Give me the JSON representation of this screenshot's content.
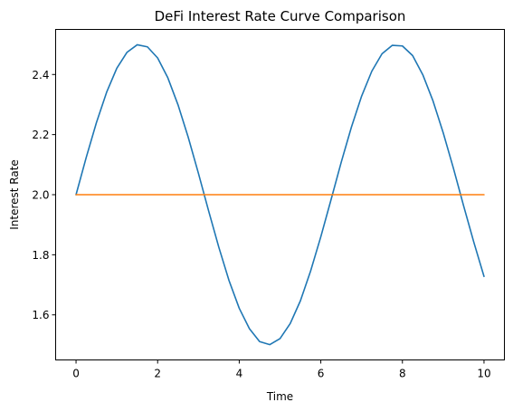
{
  "chart_data": {
    "type": "line",
    "title": "DeFi Interest Rate Curve Comparison",
    "xlabel": "Time",
    "ylabel": "Interest Rate",
    "xlim": [
      -0.5,
      10.5
    ],
    "ylim": [
      1.45,
      2.55
    ],
    "xticks": [
      0,
      2,
      4,
      6,
      8,
      10
    ],
    "xtick_labels": [
      "0",
      "2",
      "4",
      "6",
      "8",
      "10"
    ],
    "yticks": [
      1.6,
      1.8,
      2.0,
      2.2,
      2.4
    ],
    "ytick_labels": [
      "1.6",
      "1.8",
      "2.0",
      "2.2",
      "2.4"
    ],
    "grid": false,
    "legend": "none",
    "series": [
      {
        "color": "#1f77b4",
        "x": [
          0,
          0.25,
          0.5,
          0.75,
          1.0,
          1.25,
          1.5,
          1.75,
          2.0,
          2.25,
          2.5,
          2.75,
          3.0,
          3.25,
          3.5,
          3.75,
          4.0,
          4.25,
          4.5,
          4.75,
          5.0,
          5.25,
          5.5,
          5.75,
          6.0,
          6.25,
          6.5,
          6.75,
          7.0,
          7.25,
          7.5,
          7.75,
          8.0,
          8.25,
          8.5,
          8.75,
          9.0,
          9.25,
          9.5,
          9.75,
          10.0
        ],
        "y": [
          2.0,
          2.124,
          2.24,
          2.341,
          2.421,
          2.474,
          2.499,
          2.492,
          2.455,
          2.389,
          2.299,
          2.191,
          2.071,
          1.946,
          1.825,
          1.714,
          1.622,
          1.554,
          1.511,
          1.501,
          1.521,
          1.571,
          1.647,
          1.746,
          1.86,
          1.983,
          2.108,
          2.225,
          2.328,
          2.411,
          2.469,
          2.497,
          2.495,
          2.463,
          2.399,
          2.312,
          2.206,
          2.088,
          1.963,
          1.842,
          1.728
        ]
      },
      {
        "color": "#ff7f0e",
        "x": [
          0,
          10
        ],
        "y": [
          2.0,
          2.0
        ]
      }
    ]
  }
}
